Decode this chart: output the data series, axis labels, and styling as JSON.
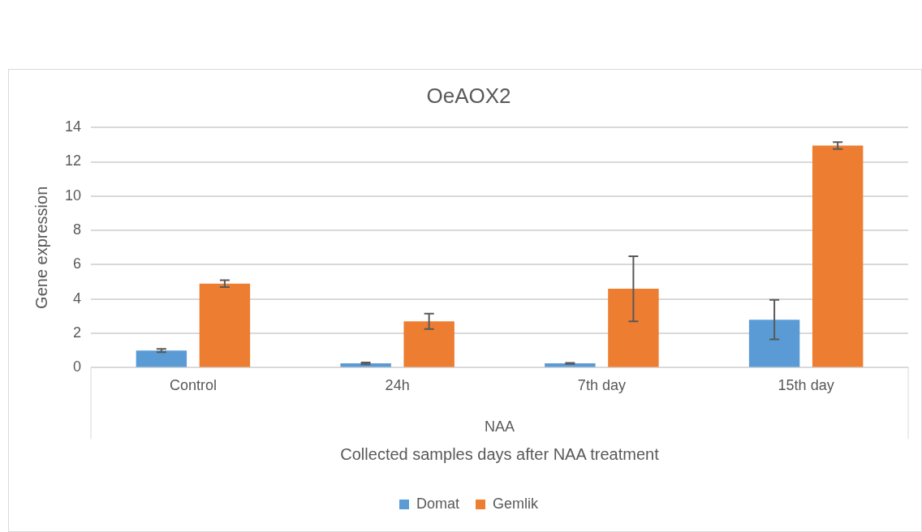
{
  "chart_data": {
    "type": "bar",
    "title": "OeAOX2",
    "xlabel": "Collected samples days after NAA treatment",
    "ylabel": "Gene expression",
    "categories": [
      "Control",
      "24h",
      "7th day",
      "15th day"
    ],
    "series": [
      {
        "name": "Domat",
        "color": "#5b9bd5",
        "values": [
          1.0,
          0.25,
          0.25,
          2.8
        ],
        "errors": [
          0.1,
          0.05,
          0.03,
          1.15
        ]
      },
      {
        "name": "Gemlik",
        "color": "#ed7d31",
        "values": [
          4.9,
          2.7,
          4.6,
          12.95
        ],
        "errors": [
          0.2,
          0.45,
          1.9,
          0.2
        ]
      }
    ],
    "ylim": [
      0,
      14
    ],
    "yticks": [
      0,
      2,
      4,
      6,
      8,
      10,
      12,
      14
    ],
    "grid": "y",
    "legend": "bottom",
    "annotations": [
      "NAA"
    ]
  }
}
